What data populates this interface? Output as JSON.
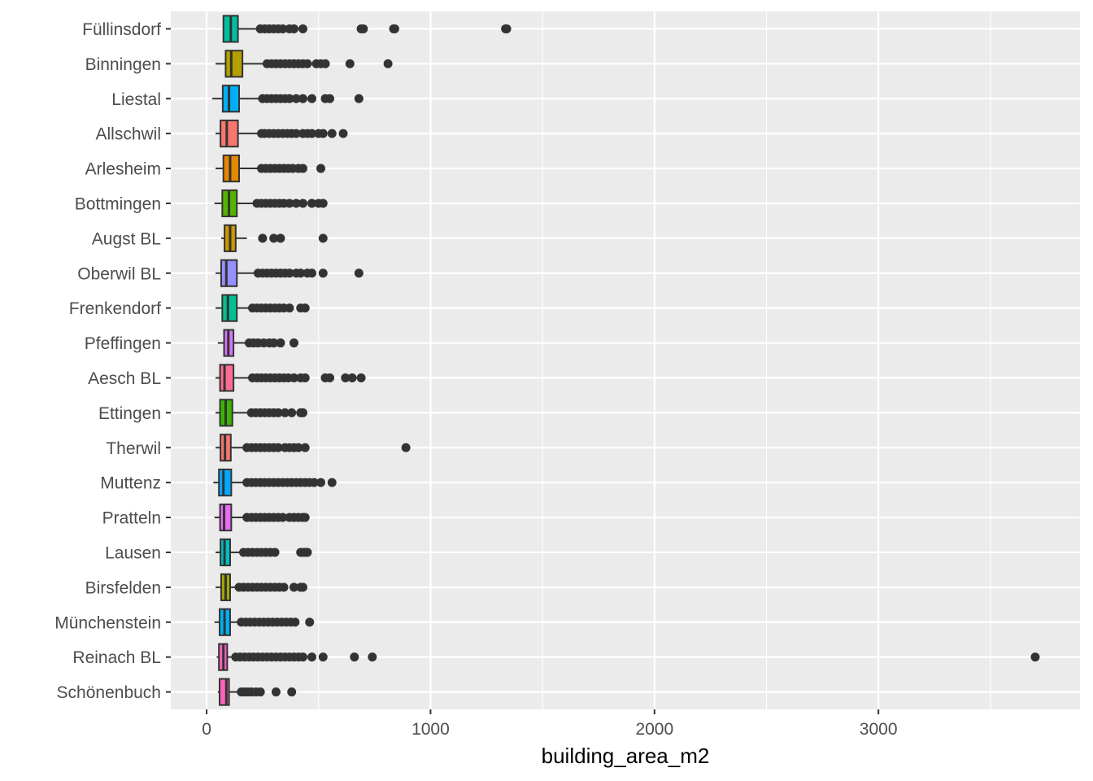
{
  "chart_data": {
    "type": "boxplot",
    "orientation": "horizontal",
    "title": "",
    "xlabel": "building_area_m2",
    "ylabel": "",
    "xlim": [
      -160,
      3900
    ],
    "x_ticks": [
      0,
      1000,
      2000,
      3000
    ],
    "x_tick_labels": [
      "0",
      "1000",
      "2000",
      "3000"
    ],
    "grid": true,
    "legend": "none",
    "panel_color": "#ebebeb",
    "grid_color": "#ffffff",
    "outlier_color": "#333333",
    "categories": [
      "Füllinsdorf",
      "Binningen",
      "Liestal",
      "Allschwil",
      "Arlesheim",
      "Bottmingen",
      "Augst BL",
      "Oberwil BL",
      "Frenkendorf",
      "Pfeffingen",
      "Aesch BL",
      "Ettingen",
      "Therwil",
      "Muttenz",
      "Pratteln",
      "Lausen",
      "Birsfelden",
      "Münchenstein",
      "Reinach BL",
      "Schönenbuch"
    ],
    "series": [
      {
        "category": "Füllinsdorf",
        "color": "#00BFA0",
        "min": 72,
        "q1": 75,
        "median": 108,
        "q3": 140,
        "max": 230,
        "outliers": [
          240,
          260,
          280,
          300,
          320,
          340,
          370,
          390,
          430,
          690,
          700,
          835,
          840,
          1335,
          1340
        ]
      },
      {
        "category": "Binningen",
        "color": "#B4A000",
        "min": 40,
        "q1": 85,
        "median": 110,
        "q3": 160,
        "max": 260,
        "outliers": [
          270,
          290,
          310,
          330,
          350,
          370,
          390,
          410,
          430,
          450,
          490,
          510,
          530,
          640,
          810
        ]
      },
      {
        "category": "Liestal",
        "color": "#00B0F6",
        "min": 25,
        "q1": 72,
        "median": 100,
        "q3": 145,
        "max": 240,
        "outliers": [
          250,
          270,
          290,
          310,
          330,
          350,
          370,
          400,
          430,
          470,
          530,
          550,
          680
        ]
      },
      {
        "category": "Allschwil",
        "color": "#F8766D",
        "min": 40,
        "q1": 62,
        "median": 90,
        "q3": 140,
        "max": 240,
        "outliers": [
          245,
          260,
          280,
          300,
          320,
          340,
          360,
          380,
          400,
          430,
          450,
          470,
          500,
          520,
          560,
          610
        ]
      },
      {
        "category": "Arlesheim",
        "color": "#E58700",
        "min": 40,
        "q1": 75,
        "median": 105,
        "q3": 145,
        "max": 240,
        "outliers": [
          245,
          265,
          285,
          305,
          325,
          345,
          365,
          385,
          410,
          430,
          510
        ]
      },
      {
        "category": "Bottmingen",
        "color": "#53B400",
        "min": 35,
        "q1": 70,
        "median": 100,
        "q3": 135,
        "max": 220,
        "outliers": [
          225,
          245,
          265,
          285,
          305,
          325,
          345,
          370,
          400,
          430,
          470,
          500,
          520
        ]
      },
      {
        "category": "Augst BL",
        "color": "#C99800",
        "min": 65,
        "q1": 80,
        "median": 105,
        "q3": 130,
        "max": 180,
        "outliers": [
          250,
          300,
          330,
          520
        ]
      },
      {
        "category": "Oberwil BL",
        "color": "#9590FF",
        "min": 40,
        "q1": 65,
        "median": 88,
        "q3": 135,
        "max": 225,
        "outliers": [
          230,
          250,
          270,
          290,
          310,
          330,
          350,
          370,
          400,
          420,
          450,
          470,
          520,
          680
        ]
      },
      {
        "category": "Frenkendorf",
        "color": "#00C094",
        "min": 40,
        "q1": 70,
        "median": 95,
        "q3": 135,
        "max": 200,
        "outliers": [
          205,
          225,
          245,
          265,
          285,
          305,
          325,
          345,
          370,
          420,
          440
        ]
      },
      {
        "category": "Pfeffingen",
        "color": "#D575FE",
        "min": 50,
        "q1": 78,
        "median": 97,
        "q3": 120,
        "max": 180,
        "outliers": [
          190,
          210,
          230,
          255,
          280,
          300,
          330,
          390
        ]
      },
      {
        "category": "Aesch BL",
        "color": "#FF6C91",
        "min": 40,
        "q1": 60,
        "median": 80,
        "q3": 120,
        "max": 200,
        "outliers": [
          205,
          225,
          245,
          265,
          285,
          305,
          325,
          345,
          365,
          390,
          420,
          440,
          530,
          550,
          620,
          650,
          690
        ]
      },
      {
        "category": "Ettingen",
        "color": "#39B600",
        "min": 40,
        "q1": 60,
        "median": 85,
        "q3": 115,
        "max": 190,
        "outliers": [
          200,
          220,
          240,
          260,
          280,
          300,
          320,
          350,
          380,
          420,
          430
        ]
      },
      {
        "category": "Therwil",
        "color": "#F8766D",
        "min": 40,
        "q1": 62,
        "median": 82,
        "q3": 108,
        "max": 175,
        "outliers": [
          180,
          200,
          220,
          240,
          260,
          280,
          300,
          320,
          350,
          370,
          390,
          410,
          440,
          890
        ]
      },
      {
        "category": "Muttenz",
        "color": "#00A9FF",
        "min": 30,
        "q1": 55,
        "median": 75,
        "q3": 110,
        "max": 175,
        "outliers": [
          180,
          200,
          220,
          240,
          260,
          280,
          300,
          320,
          340,
          360,
          380,
          400,
          420,
          440,
          460,
          480,
          510,
          560
        ]
      },
      {
        "category": "Pratteln",
        "color": "#E76BF3",
        "min": 35,
        "q1": 60,
        "median": 78,
        "q3": 110,
        "max": 175,
        "outliers": [
          180,
          200,
          220,
          240,
          260,
          280,
          300,
          320,
          340,
          370,
          390,
          410,
          430,
          440
        ]
      },
      {
        "category": "Lausen",
        "color": "#00BFC4",
        "min": 40,
        "q1": 62,
        "median": 80,
        "q3": 105,
        "max": 160,
        "outliers": [
          165,
          185,
          205,
          225,
          245,
          265,
          285,
          305,
          420,
          430,
          440,
          450
        ]
      },
      {
        "category": "Birsfelden",
        "color": "#A3A500",
        "min": 40,
        "q1": 65,
        "median": 85,
        "q3": 105,
        "max": 140,
        "outliers": [
          145,
          165,
          185,
          205,
          225,
          245,
          265,
          285,
          305,
          325,
          345,
          390,
          420,
          430
        ]
      },
      {
        "category": "Münchenstein",
        "color": "#00B0F6",
        "min": 35,
        "q1": 58,
        "median": 80,
        "q3": 105,
        "max": 150,
        "outliers": [
          155,
          175,
          195,
          215,
          235,
          255,
          275,
          295,
          315,
          335,
          355,
          375,
          395,
          460
        ]
      },
      {
        "category": "Reinach BL",
        "color": "#FF61C3",
        "min": 45,
        "q1": 55,
        "median": 75,
        "q3": 92,
        "max": 125,
        "outliers": [
          130,
          150,
          170,
          190,
          210,
          230,
          250,
          270,
          290,
          310,
          330,
          350,
          370,
          390,
          410,
          430,
          470,
          520,
          660,
          740,
          3700
        ]
      },
      {
        "category": "Schönenbuch",
        "color": "#FF62BC",
        "min": 50,
        "q1": 58,
        "median": 88,
        "q3": 100,
        "max": 145,
        "outliers": [
          155,
          170,
          185,
          200,
          220,
          240,
          310,
          380
        ]
      }
    ]
  }
}
